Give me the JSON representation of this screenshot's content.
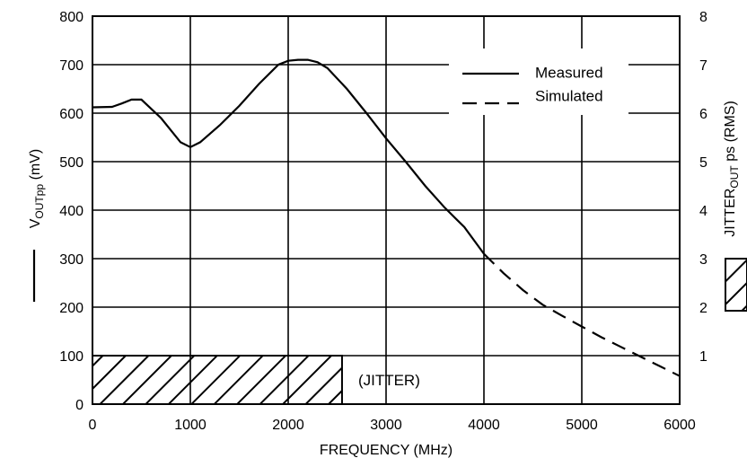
{
  "chart_data": {
    "type": "line",
    "xlabel": "FREQUENCY (MHz)",
    "ylabel_left": {
      "main": "V",
      "sub": "OUTpp",
      "rest": " (mV)"
    },
    "ylabel_right": {
      "main": "JITTER",
      "sub": "OUT",
      "rest": " ps (RMS)"
    },
    "xlim": [
      0,
      6000
    ],
    "ylim_left": [
      0,
      800
    ],
    "ylim_right": [
      0,
      8
    ],
    "grid": true,
    "x_ticks": [
      "0",
      "1000",
      "2000",
      "3000",
      "4000",
      "5000",
      "6000"
    ],
    "y_left_ticks": [
      "0",
      "100",
      "200",
      "300",
      "400",
      "500",
      "600",
      "700",
      "800"
    ],
    "y_right_ticks": [
      "1",
      "2",
      "3",
      "4",
      "5",
      "6",
      "7",
      "8"
    ],
    "legend": {
      "position": "top-right",
      "entries": [
        {
          "label": "Measured",
          "style": "solid"
        },
        {
          "label": "Simulated",
          "style": "dashed"
        }
      ]
    },
    "series": [
      {
        "name": "Measured",
        "style": "solid",
        "x": [
          0,
          200,
          300,
          400,
          500,
          700,
          900,
          1000,
          1100,
          1300,
          1500,
          1700,
          1900,
          2000,
          2100,
          2200,
          2300,
          2400,
          2600,
          2800,
          3000,
          3200,
          3400,
          3600,
          3800,
          4000
        ],
        "y": [
          612,
          613,
          620,
          628,
          628,
          590,
          540,
          530,
          540,
          575,
          615,
          660,
          700,
          708,
          710,
          710,
          705,
          693,
          650,
          600,
          548,
          500,
          450,
          405,
          365,
          310
        ]
      },
      {
        "name": "Simulated",
        "style": "dashed",
        "x": [
          4000,
          4200,
          4400,
          4600,
          4800,
          5000,
          5200,
          5400,
          5600,
          5800,
          6000
        ],
        "y": [
          310,
          270,
          235,
          205,
          182,
          160,
          138,
          118,
          98,
          78,
          58
        ]
      }
    ],
    "jitter_bar": {
      "label": "(JITTER)",
      "x_start": 0,
      "x_end": 2550,
      "value_ps": 1
    }
  }
}
